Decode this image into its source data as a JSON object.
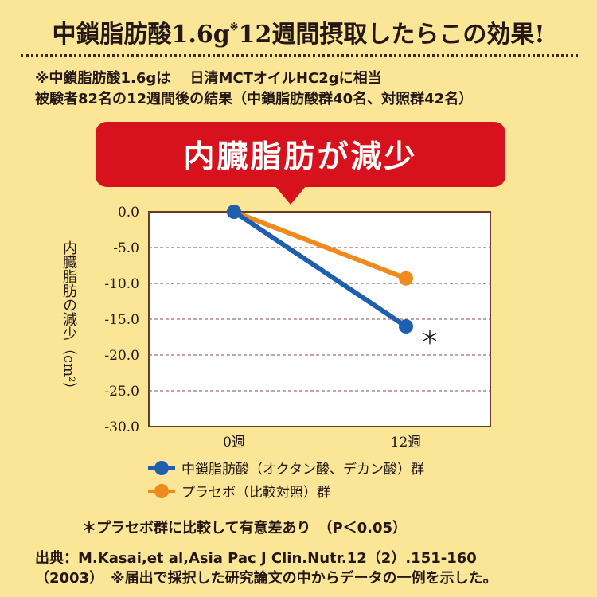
{
  "headline": {
    "main": "中鎖脂肪酸1.6g",
    "mark": "※",
    "rest": "12週間摂取したらこの効果!"
  },
  "notes": {
    "line1": "※中鎖脂肪酸1.6gは　 日清MCTオイルHC2gに相当",
    "line2": "被験者82名の12週間後の結果（中鎖脂肪酸群40名、対照群42名）"
  },
  "banner": {
    "label": "内臓脂肪が減少"
  },
  "chart_data": {
    "type": "line",
    "x": [
      "0週",
      "12週"
    ],
    "ylabel": "内臓脂肪の減少（cm²）",
    "ylim": [
      -30,
      0
    ],
    "yticks": [
      0,
      -5,
      -10,
      -15,
      -20,
      -25,
      -30
    ],
    "ytick_labels": [
      "0.0",
      "-5.0",
      "-10.0",
      "-15.0",
      "-20.0",
      "-25.0",
      "-30.0"
    ],
    "grid": true,
    "series": [
      {
        "name": "中鎖脂肪酸（オクタン酸、デカン酸）群",
        "values": [
          0,
          -16
        ],
        "color": "#1f5fb0"
      },
      {
        "name": "プラセボ（比較対照）群",
        "values": [
          0,
          -9.3
        ],
        "color": "#ee8a1e"
      }
    ],
    "annotation": {
      "text": "＊",
      "series": 0,
      "point": 1
    }
  },
  "footnote": "＊プラセボ群に比較して有意差あり　（P＜0.05）",
  "source": {
    "line1": "出典：M.Kasai,et al,Asia Pac J Clin.Nutr.12（2）.151-160",
    "line2": "（2003）　※届出で採択した研究論文の中からデータの一例を示した。"
  }
}
